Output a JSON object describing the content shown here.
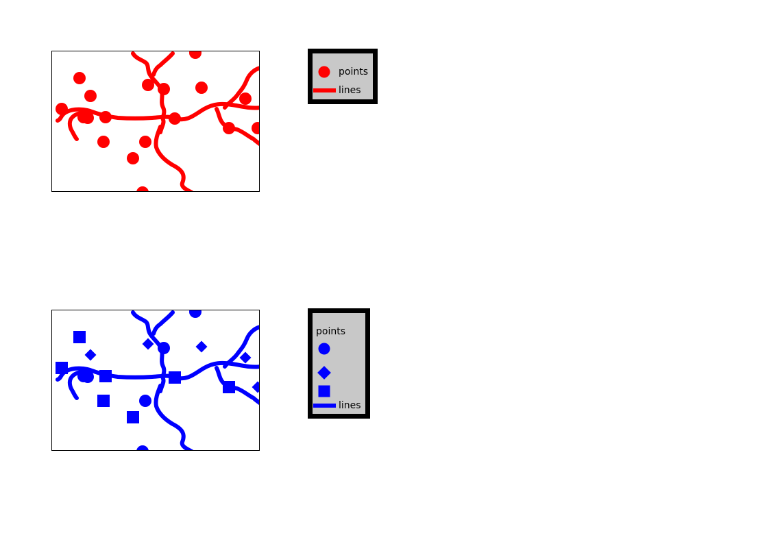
{
  "colors": {
    "top_map": "#ff0000",
    "bottom_map": "#0000ff",
    "legend_background": "#c8c8c8",
    "legend_border": "#000000"
  },
  "top_map": {
    "point_symbol": "circle",
    "legend": {
      "points_label": "points",
      "lines_label": "lines"
    }
  },
  "bottom_map": {
    "point_symbols": [
      "circle",
      "diamond",
      "square"
    ],
    "legend": {
      "title": "points",
      "lines_label": "lines"
    }
  }
}
